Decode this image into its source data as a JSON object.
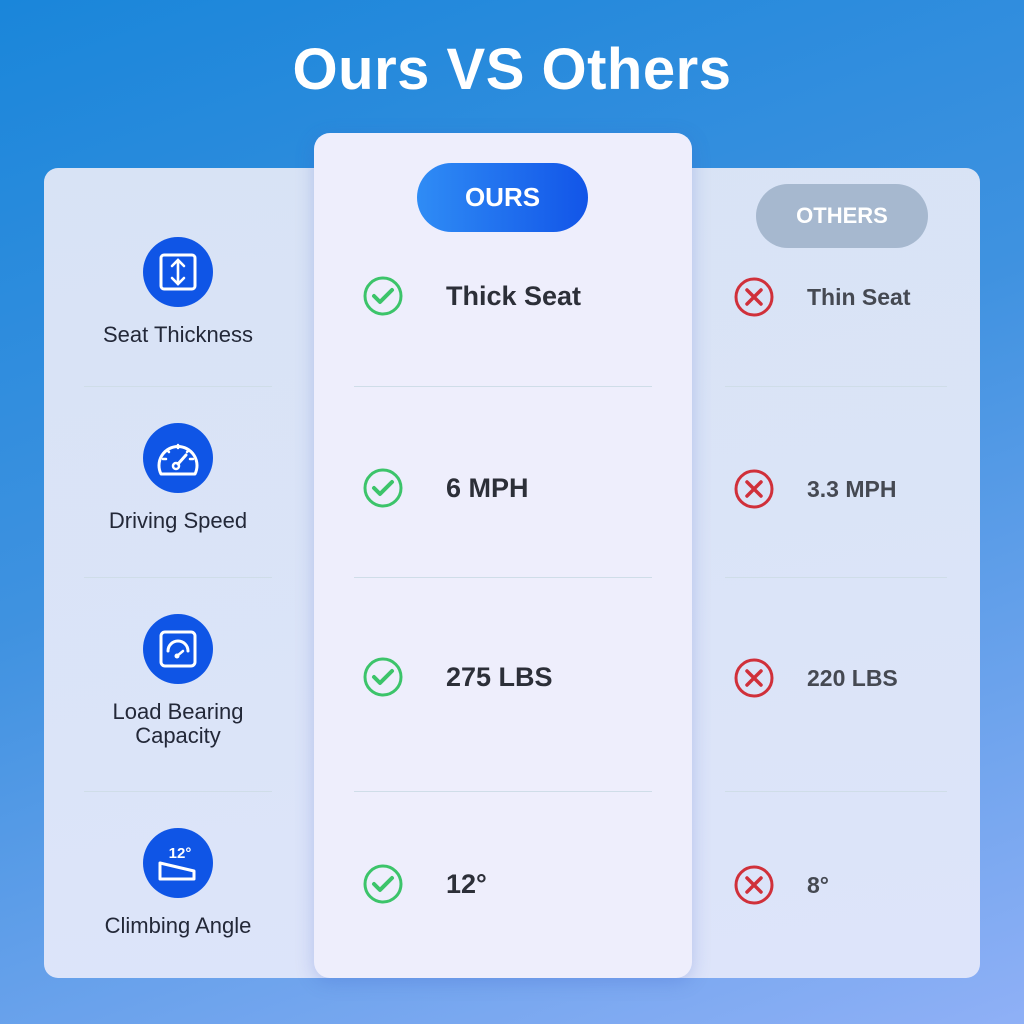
{
  "title": "Ours VS Others",
  "columns": {
    "ours": "OURS",
    "others": "OTHERS"
  },
  "colors": {
    "accent": "#0f55e6",
    "check": "#3cc46a",
    "cross": "#d0303a",
    "others_pill": "#a6b8cf"
  },
  "rows": [
    {
      "feature": "Seat Thickness",
      "icon": "arrows-vertical-icon",
      "ours": "Thick Seat",
      "others": "Thin Seat"
    },
    {
      "feature": "Driving Speed",
      "icon": "speedometer-icon",
      "ours": "6 MPH",
      "others": "3.3 MPH"
    },
    {
      "feature": "Load Bearing Capacity",
      "icon": "scale-gauge-icon",
      "ours": "275 LBS",
      "others": "220 LBS"
    },
    {
      "feature": "Climbing Angle",
      "icon": "slope-angle-icon",
      "icon_text": "12°",
      "ours": "12°",
      "others": "8°"
    }
  ]
}
